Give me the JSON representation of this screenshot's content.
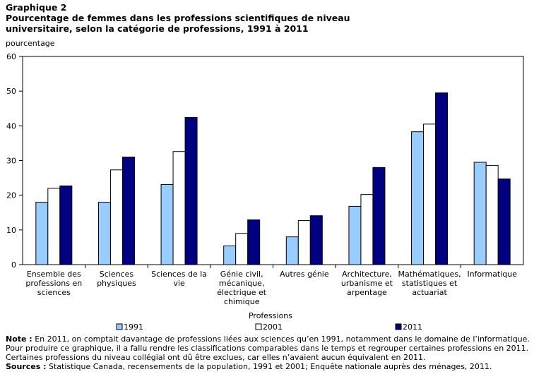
{
  "header": {
    "label": "Graphique  2",
    "title_line1": "Pourcentage  de femmes dans les professions  scientifiques  de niveau",
    "title_line2": "universitaire,  selon la catégorie de professions,  1991 à 2011"
  },
  "notes": {
    "note_label": "Note :",
    "note_line1": " En 2011, on comptait davantage de professions liées aux sciences qu’en 1991, notamment dans le domaine de l’informatique.",
    "note_line2": "Pour produire ce graphique, il a fallu rendre les classifications comparables dans le temps et regrouper certaines professions en 2011.",
    "note_line3": "Certaines professions du niveau collégial ont dû être exclues, car elles n’avaient aucun équivalent en 2011.",
    "sources_label": "Sources :",
    "sources_text": " Statistique Canada, recensements de la population, 1991 et 2001; Enquête nationale auprès des ménages, 2011."
  },
  "chart_data": {
    "type": "bar",
    "ylabel": "pourcentage",
    "xlabel": "Professions",
    "ylim": [
      0,
      60
    ],
    "yticks": [
      0,
      10,
      20,
      30,
      40,
      50,
      60
    ],
    "legend_position": "bottom",
    "categories": [
      [
        "Ensemble des",
        "professions en",
        "sciences"
      ],
      [
        "Sciences",
        "physiques"
      ],
      [
        "Sciences de la",
        "vie"
      ],
      [
        "Génie civil,",
        "mécanique,",
        "électrique et",
        "chimique"
      ],
      [
        "Autres génie"
      ],
      [
        "Architecture,",
        "urbanisme et",
        "arpentage"
      ],
      [
        "Mathématiques,",
        "statistiques et",
        "actuariat"
      ],
      [
        "Informatique"
      ]
    ],
    "series": [
      {
        "name": "1991",
        "color": "#99ccff",
        "values": [
          18.0,
          18.0,
          23.1,
          5.4,
          8.0,
          16.8,
          38.3,
          29.5
        ]
      },
      {
        "name": "2001",
        "color": "#ffffff",
        "values": [
          22.0,
          27.3,
          32.6,
          9.0,
          12.7,
          20.2,
          40.5,
          28.6
        ]
      },
      {
        "name": "2011",
        "color": "#000080",
        "values": [
          22.7,
          31.0,
          42.4,
          12.9,
          14.1,
          28.0,
          49.5,
          24.7
        ]
      }
    ]
  }
}
